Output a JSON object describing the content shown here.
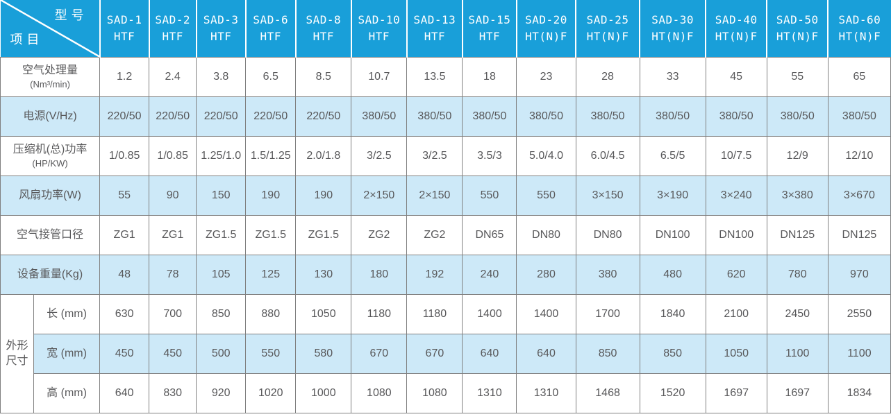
{
  "table": {
    "colors": {
      "header_bg": "#199fd9",
      "header_text": "#ffffff",
      "band_bg": "#cde9f8",
      "border_color": "#7f7f7f",
      "cell_text": "#58585a"
    },
    "corner": {
      "top": "型号",
      "bottom": "项目"
    },
    "models": [
      {
        "code": "SAD-1",
        "suffix": "HTF"
      },
      {
        "code": "SAD-2",
        "suffix": "HTF"
      },
      {
        "code": "SAD-3",
        "suffix": "HTF"
      },
      {
        "code": "SAD-6",
        "suffix": "HTF"
      },
      {
        "code": "SAD-8",
        "suffix": "HTF"
      },
      {
        "code": "SAD-10",
        "suffix": "HTF"
      },
      {
        "code": "SAD-13",
        "suffix": "HTF"
      },
      {
        "code": "SAD-15",
        "suffix": "HTF"
      },
      {
        "code": "SAD-20",
        "suffix": "HT(N)F"
      },
      {
        "code": "SAD-25",
        "suffix": "HT(N)F"
      },
      {
        "code": "SAD-30",
        "suffix": "HT(N)F"
      },
      {
        "code": "SAD-40",
        "suffix": "HT(N)F"
      },
      {
        "code": "SAD-50",
        "suffix": "HT(N)F"
      },
      {
        "code": "SAD-60",
        "suffix": "HT(N)F"
      }
    ],
    "rows": [
      {
        "label_lines": [
          "空气处理量",
          "(Nm³/min)"
        ],
        "values": [
          "1.2",
          "2.4",
          "3.8",
          "6.5",
          "8.5",
          "10.7",
          "13.5",
          "18",
          "23",
          "28",
          "33",
          "45",
          "55",
          "65"
        ]
      },
      {
        "label_lines": [
          "电源(V/Hz)"
        ],
        "values": [
          "220/50",
          "220/50",
          "220/50",
          "220/50",
          "220/50",
          "380/50",
          "380/50",
          "380/50",
          "380/50",
          "380/50",
          "380/50",
          "380/50",
          "380/50",
          "380/50"
        ]
      },
      {
        "label_lines": [
          "压缩机(总)功率",
          "(HP/KW)"
        ],
        "values": [
          "1/0.85",
          "1/0.85",
          "1.25/1.0",
          "1.5/1.25",
          "2.0/1.8",
          "3/2.5",
          "3/2.5",
          "3.5/3",
          "5.0/4.0",
          "6.0/4.5",
          "6.5/5",
          "10/7.5",
          "12/9",
          "12/10"
        ]
      },
      {
        "label_lines": [
          "风扇功率(W)"
        ],
        "values": [
          "55",
          "90",
          "150",
          "190",
          "190",
          "2×150",
          "2×150",
          "550",
          "550",
          "3×150",
          "3×190",
          "3×240",
          "3×380",
          "3×670"
        ]
      },
      {
        "label_lines": [
          "空气接管口径"
        ],
        "values": [
          "ZG1",
          "ZG1",
          "ZG1.5",
          "ZG1.5",
          "ZG1.5",
          "ZG2",
          "ZG2",
          "DN65",
          "DN80",
          "DN80",
          "DN100",
          "DN100",
          "DN125",
          "DN125"
        ]
      },
      {
        "label_lines": [
          "设备重量(Kg)"
        ],
        "values": [
          "48",
          "78",
          "105",
          "125",
          "130",
          "180",
          "192",
          "240",
          "280",
          "380",
          "480",
          "620",
          "780",
          "970"
        ]
      }
    ],
    "dimension_group": {
      "label_lines": [
        "外形",
        "尺寸"
      ],
      "rows": [
        {
          "label": "长 (mm)",
          "values": [
            "630",
            "700",
            "850",
            "880",
            "1050",
            "1180",
            "1180",
            "1400",
            "1400",
            "1700",
            "1840",
            "2100",
            "2450",
            "2550"
          ]
        },
        {
          "label": "宽 (mm)",
          "values": [
            "450",
            "450",
            "500",
            "550",
            "580",
            "670",
            "670",
            "640",
            "640",
            "850",
            "850",
            "1050",
            "1100",
            "1100"
          ]
        },
        {
          "label": "高 (mm)",
          "values": [
            "640",
            "830",
            "920",
            "1020",
            "1000",
            "1080",
            "1080",
            "1310",
            "1310",
            "1468",
            "1520",
            "1697",
            "1697",
            "1834"
          ]
        }
      ]
    }
  }
}
